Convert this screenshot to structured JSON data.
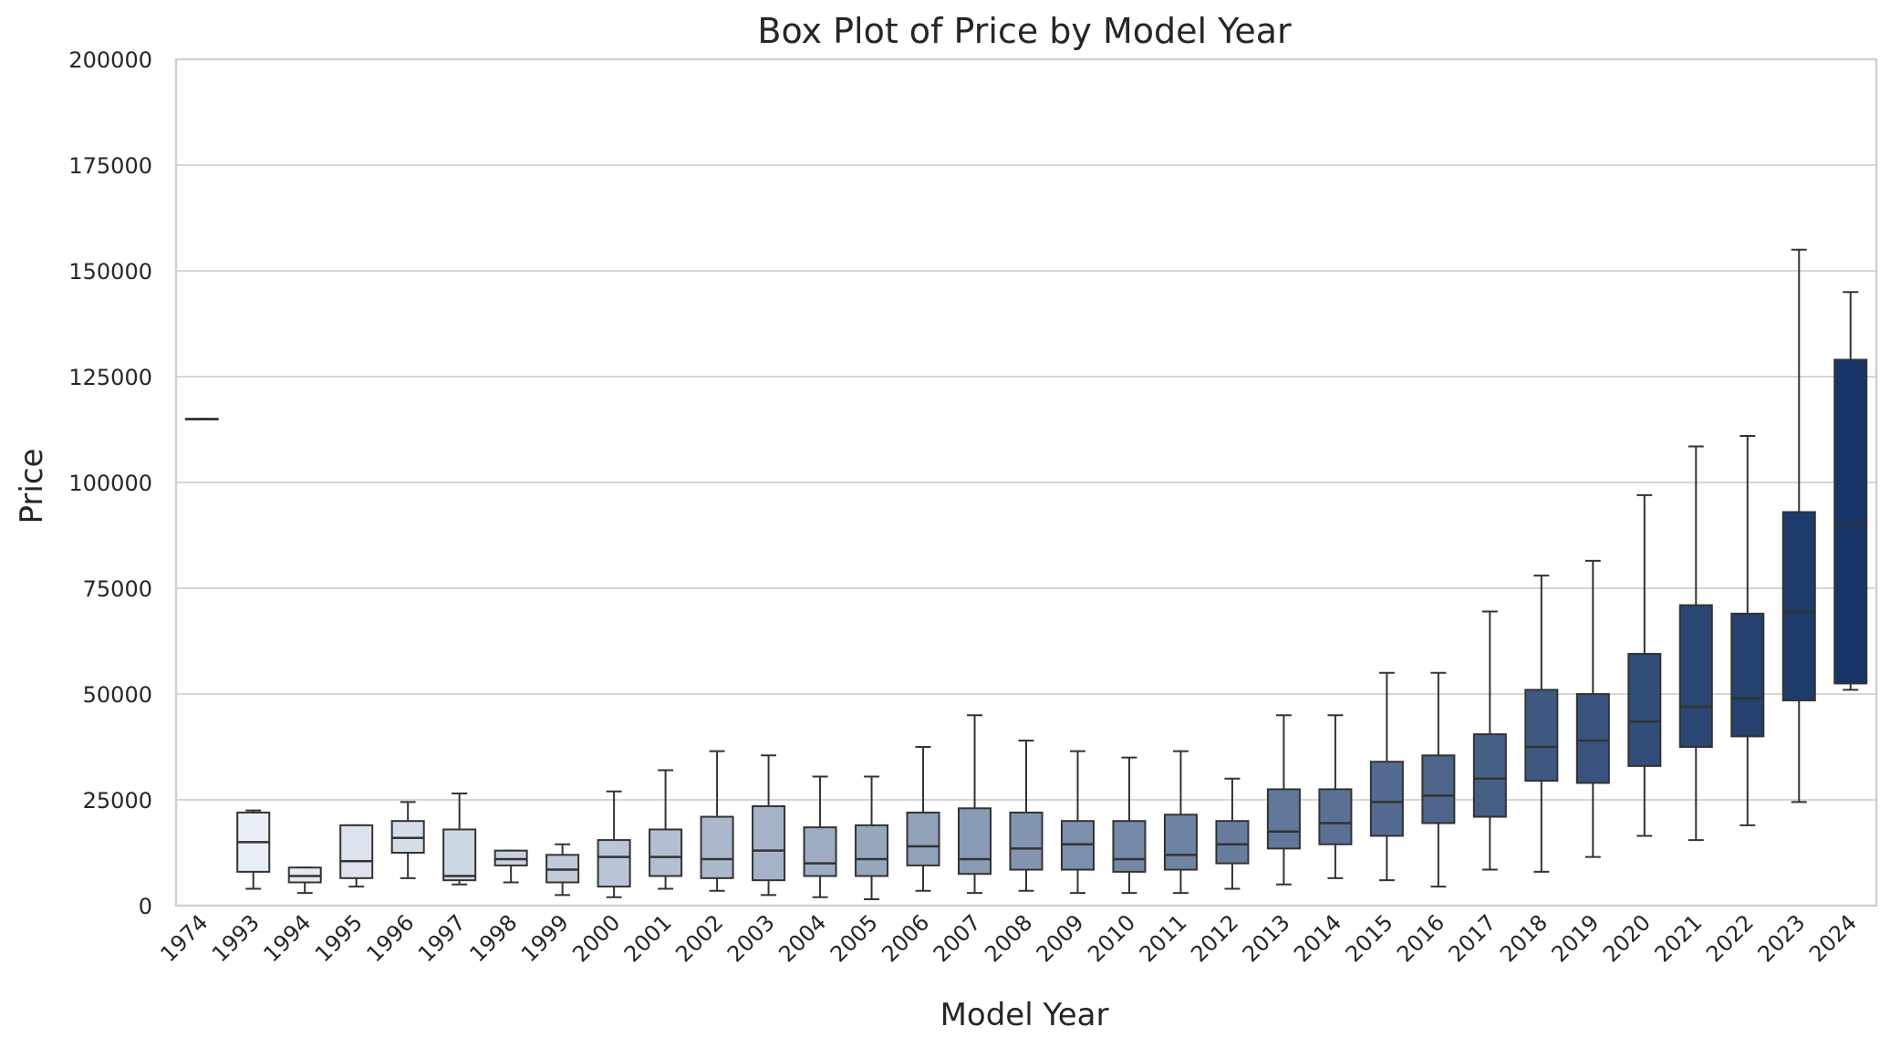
{
  "chart_data": {
    "type": "box",
    "title": "Box Plot of Price by Model Year",
    "xlabel": "Model Year",
    "ylabel": "Price",
    "ylim": [
      0,
      200000
    ],
    "yticks": [
      0,
      25000,
      50000,
      75000,
      100000,
      125000,
      150000,
      175000,
      200000
    ],
    "ytick_labels": [
      "0",
      "25000",
      "50000",
      "75000",
      "100000",
      "125000",
      "150000",
      "175000",
      "200000"
    ],
    "grid": "horizontal",
    "x_tick_rotation": "45 degrees",
    "palette": "Blues",
    "categories": [
      "1974",
      "1993",
      "1994",
      "1995",
      "1996",
      "1997",
      "1998",
      "1999",
      "2000",
      "2001",
      "2002",
      "2003",
      "2004",
      "2005",
      "2006",
      "2007",
      "2008",
      "2009",
      "2010",
      "2011",
      "2012",
      "2013",
      "2014",
      "2015",
      "2016",
      "2017",
      "2018",
      "2019",
      "2020",
      "2021",
      "2022",
      "2023",
      "2024"
    ],
    "boxes": [
      {
        "year": "1974",
        "whisker_low": 115000,
        "q1": 115000,
        "median": 115000,
        "q3": 115000,
        "whisker_high": 115000
      },
      {
        "year": "1993",
        "whisker_low": 4000,
        "q1": 8000,
        "median": 15000,
        "q3": 22000,
        "whisker_high": 22500
      },
      {
        "year": "1994",
        "whisker_low": 3000,
        "q1": 5500,
        "median": 7000,
        "q3": 9000,
        "whisker_high": 9000
      },
      {
        "year": "1995",
        "whisker_low": 4500,
        "q1": 6500,
        "median": 10500,
        "q3": 19000,
        "whisker_high": 19000
      },
      {
        "year": "1996",
        "whisker_low": 6500,
        "q1": 12500,
        "median": 16000,
        "q3": 20000,
        "whisker_high": 24500
      },
      {
        "year": "1997",
        "whisker_low": 5000,
        "q1": 6000,
        "median": 7000,
        "q3": 18000,
        "whisker_high": 26500
      },
      {
        "year": "1998",
        "whisker_low": 5500,
        "q1": 9500,
        "median": 11000,
        "q3": 13000,
        "whisker_high": 13000
      },
      {
        "year": "1999",
        "whisker_low": 2500,
        "q1": 5500,
        "median": 8500,
        "q3": 12000,
        "whisker_high": 14500
      },
      {
        "year": "2000",
        "whisker_low": 2000,
        "q1": 4500,
        "median": 11500,
        "q3": 15500,
        "whisker_high": 27000
      },
      {
        "year": "2001",
        "whisker_low": 4000,
        "q1": 7000,
        "median": 11500,
        "q3": 18000,
        "whisker_high": 32000
      },
      {
        "year": "2002",
        "whisker_low": 3500,
        "q1": 6500,
        "median": 11000,
        "q3": 21000,
        "whisker_high": 36500
      },
      {
        "year": "2003",
        "whisker_low": 2500,
        "q1": 6000,
        "median": 13000,
        "q3": 23500,
        "whisker_high": 35500
      },
      {
        "year": "2004",
        "whisker_low": 2000,
        "q1": 7000,
        "median": 10000,
        "q3": 18500,
        "whisker_high": 30500
      },
      {
        "year": "2005",
        "whisker_low": 1500,
        "q1": 7000,
        "median": 11000,
        "q3": 19000,
        "whisker_high": 30500
      },
      {
        "year": "2006",
        "whisker_low": 3500,
        "q1": 9500,
        "median": 14000,
        "q3": 22000,
        "whisker_high": 37500
      },
      {
        "year": "2007",
        "whisker_low": 3000,
        "q1": 7500,
        "median": 11000,
        "q3": 23000,
        "whisker_high": 45000
      },
      {
        "year": "2008",
        "whisker_low": 3500,
        "q1": 8500,
        "median": 13500,
        "q3": 22000,
        "whisker_high": 39000
      },
      {
        "year": "2009",
        "whisker_low": 3000,
        "q1": 8500,
        "median": 14500,
        "q3": 20000,
        "whisker_high": 36500
      },
      {
        "year": "2010",
        "whisker_low": 3000,
        "q1": 8000,
        "median": 11000,
        "q3": 20000,
        "whisker_high": 35000
      },
      {
        "year": "2011",
        "whisker_low": 3000,
        "q1": 8500,
        "median": 12000,
        "q3": 21500,
        "whisker_high": 36500
      },
      {
        "year": "2012",
        "whisker_low": 4000,
        "q1": 10000,
        "median": 14500,
        "q3": 20000,
        "whisker_high": 30000
      },
      {
        "year": "2013",
        "whisker_low": 5000,
        "q1": 13500,
        "median": 17500,
        "q3": 27500,
        "whisker_high": 45000
      },
      {
        "year": "2014",
        "whisker_low": 6500,
        "q1": 14500,
        "median": 19500,
        "q3": 27500,
        "whisker_high": 45000
      },
      {
        "year": "2015",
        "whisker_low": 6000,
        "q1": 16500,
        "median": 24500,
        "q3": 34000,
        "whisker_high": 55000
      },
      {
        "year": "2016",
        "whisker_low": 4500,
        "q1": 19500,
        "median": 26000,
        "q3": 35500,
        "whisker_high": 55000
      },
      {
        "year": "2017",
        "whisker_low": 8500,
        "q1": 21000,
        "median": 30000,
        "q3": 40500,
        "whisker_high": 69500
      },
      {
        "year": "2018",
        "whisker_low": 8000,
        "q1": 29500,
        "median": 37500,
        "q3": 51000,
        "whisker_high": 78000
      },
      {
        "year": "2019",
        "whisker_low": 11500,
        "q1": 29000,
        "median": 39000,
        "q3": 50000,
        "whisker_high": 81500
      },
      {
        "year": "2020",
        "whisker_low": 16500,
        "q1": 33000,
        "median": 43500,
        "q3": 59500,
        "whisker_high": 97000
      },
      {
        "year": "2021",
        "whisker_low": 15500,
        "q1": 37500,
        "median": 47000,
        "q3": 71000,
        "whisker_high": 108500
      },
      {
        "year": "2022",
        "whisker_low": 19000,
        "q1": 40000,
        "median": 49000,
        "q3": 69000,
        "whisker_high": 111000
      },
      {
        "year": "2023",
        "whisker_low": 24500,
        "q1": 48500,
        "median": 69500,
        "q3": 93000,
        "whisker_high": 155000
      },
      {
        "year": "2024",
        "whisker_low": 51000,
        "q1": 52500,
        "median": 90000,
        "q3": 129000,
        "whisker_high": 145000
      }
    ],
    "colors": {
      "frame": "#d0d0d0",
      "grid": "#d6d6d6",
      "line": "#333333",
      "text": "#262626",
      "palette_light": "#f0f5fb",
      "palette_dark": "#163566"
    }
  }
}
